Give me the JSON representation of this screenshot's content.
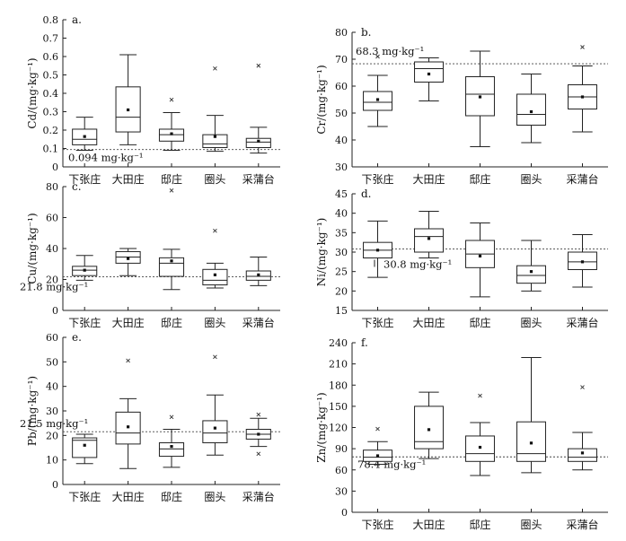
{
  "chart_data": [
    {
      "type": "box",
      "panel": "a.",
      "ylabel": "Cd/(mg·kg⁻¹)",
      "ylim": [
        0,
        0.8
      ],
      "yticks": [
        0,
        0.1,
        0.2,
        0.3,
        0.4,
        0.5,
        0.6,
        0.7,
        0.8
      ],
      "ytick_labels": [
        "0",
        "0.1",
        "0.2",
        "0.3",
        "0.4",
        "0.5",
        "0.6",
        "0.7",
        "0.8"
      ],
      "categories": [
        "下张庄",
        "大田庄",
        "邸庄",
        "圈头",
        "采蒲台"
      ],
      "boxes": [
        {
          "whisker_low": 0.09,
          "q1": 0.12,
          "median": 0.15,
          "q3": 0.205,
          "whisker_high": 0.27,
          "mean": 0.165,
          "outliers": []
        },
        {
          "whisker_low": 0.12,
          "q1": 0.19,
          "median": 0.27,
          "q3": 0.435,
          "whisker_high": 0.61,
          "mean": 0.31,
          "outliers": []
        },
        {
          "whisker_low": 0.09,
          "q1": 0.14,
          "median": 0.175,
          "q3": 0.205,
          "whisker_high": 0.295,
          "mean": 0.18,
          "outliers": [
            0.365
          ]
        },
        {
          "whisker_low": 0.085,
          "q1": 0.105,
          "median": 0.125,
          "q3": 0.175,
          "whisker_high": 0.28,
          "mean": 0.165,
          "outliers": [
            0.535
          ]
        },
        {
          "whisker_low": 0.075,
          "q1": 0.105,
          "median": 0.135,
          "q3": 0.155,
          "whisker_high": 0.215,
          "mean": 0.14,
          "outliers": [
            0.55
          ]
        }
      ],
      "reference": {
        "value": 0.094,
        "label": "0.094 mg·kg⁻¹"
      }
    },
    {
      "type": "box",
      "panel": "b.",
      "ylabel": "Cr/(mg·kg⁻¹)",
      "ylim": [
        30,
        80
      ],
      "yticks": [
        30,
        40,
        50,
        60,
        70,
        80
      ],
      "ytick_labels": [
        "30",
        "40",
        "50",
        "60",
        "70",
        "80"
      ],
      "categories": [
        "下张庄",
        "大田庄",
        "邸庄",
        "圈头",
        "采蒲台"
      ],
      "boxes": [
        {
          "whisker_low": 45,
          "q1": 51,
          "median": 54,
          "q3": 58,
          "whisker_high": 64,
          "mean": 55,
          "outliers": [
            71
          ]
        },
        {
          "whisker_low": 54.5,
          "q1": 61.5,
          "median": 66.5,
          "q3": 69,
          "whisker_high": 70.5,
          "mean": 64.5,
          "outliers": []
        },
        {
          "whisker_low": 37.5,
          "q1": 49,
          "median": 57,
          "q3": 63.5,
          "whisker_high": 73,
          "mean": 56,
          "outliers": []
        },
        {
          "whisker_low": 39,
          "q1": 45.5,
          "median": 49.5,
          "q3": 57,
          "whisker_high": 64.5,
          "mean": 50.5,
          "outliers": []
        },
        {
          "whisker_low": 43,
          "q1": 51.5,
          "median": 56,
          "q3": 60.5,
          "whisker_high": 67.5,
          "mean": 56,
          "outliers": [
            74.5
          ]
        }
      ],
      "reference": {
        "value": 68.3,
        "label": "68.3 mg·kg⁻¹"
      }
    },
    {
      "type": "box",
      "panel": "c.",
      "ylabel": "Cu/(mg·kg⁻¹)",
      "ylim": [
        0,
        80
      ],
      "yticks": [
        0,
        20,
        40,
        60,
        80
      ],
      "ytick_labels": [
        "0",
        "20",
        "40",
        "60",
        "80"
      ],
      "categories": [
        "下张庄",
        "大田庄",
        "邸庄",
        "圈头",
        "采蒲台"
      ],
      "boxes": [
        {
          "whisker_low": 19.5,
          "q1": 22.5,
          "median": 26,
          "q3": 28.5,
          "whisker_high": 35.5,
          "mean": 26,
          "outliers": []
        },
        {
          "whisker_low": 22.5,
          "q1": 30.5,
          "median": 34.5,
          "q3": 38,
          "whisker_high": 40,
          "mean": 33.5,
          "outliers": []
        },
        {
          "whisker_low": 13.5,
          "q1": 22,
          "median": 30.5,
          "q3": 34,
          "whisker_high": 39.5,
          "mean": 32,
          "outliers": [
            77.5
          ]
        },
        {
          "whisker_low": 14.5,
          "q1": 16.5,
          "median": 19.5,
          "q3": 26.5,
          "whisker_high": 30.5,
          "mean": 23,
          "outliers": [
            51.5
          ]
        },
        {
          "whisker_low": 16,
          "q1": 19.5,
          "median": 22,
          "q3": 25.5,
          "whisker_high": 34.5,
          "mean": 23,
          "outliers": []
        }
      ],
      "reference": {
        "value": 21.8,
        "label": "21.8 mg·kg⁻¹"
      }
    },
    {
      "type": "box",
      "panel": "d.",
      "ylabel": "Ni/(mg·kg⁻¹)",
      "ylim": [
        15,
        45
      ],
      "yticks": [
        15,
        20,
        25,
        30,
        35,
        40,
        45
      ],
      "ytick_labels": [
        "15",
        "20",
        "25",
        "30",
        "35",
        "40",
        "45"
      ],
      "categories": [
        "下张庄",
        "大田庄",
        "邸庄",
        "圈头",
        "采蒲台"
      ],
      "boxes": [
        {
          "whisker_low": 23.5,
          "q1": 28.5,
          "median": 30.5,
          "q3": 32.5,
          "whisker_high": 38,
          "mean": 30.5,
          "outliers": []
        },
        {
          "whisker_low": 28.5,
          "q1": 30,
          "median": 34,
          "q3": 36,
          "whisker_high": 40.5,
          "mean": 33.5,
          "outliers": []
        },
        {
          "whisker_low": 18.5,
          "q1": 26,
          "median": 29.5,
          "q3": 33,
          "whisker_high": 37.5,
          "mean": 29,
          "outliers": []
        },
        {
          "whisker_low": 20,
          "q1": 22,
          "median": 24,
          "q3": 26.5,
          "whisker_high": 33,
          "mean": 25,
          "outliers": []
        },
        {
          "whisker_low": 21,
          "q1": 25.5,
          "median": 27.5,
          "q3": 30,
          "whisker_high": 34.5,
          "mean": 27.5,
          "outliers": []
        }
      ],
      "reference": {
        "value": 30.8,
        "label": "30.8 mg·kg⁻¹"
      }
    },
    {
      "type": "box",
      "panel": "e.",
      "ylabel": "Pb/(mg·kg⁻¹)",
      "ylim": [
        0,
        60
      ],
      "yticks": [
        0,
        10,
        20,
        30,
        40,
        50,
        60
      ],
      "ytick_labels": [
        "0",
        "10",
        "20",
        "30",
        "40",
        "50",
        "60"
      ],
      "categories": [
        "下张庄",
        "大田庄",
        "邸庄",
        "圈头",
        "采蒲台"
      ],
      "boxes": [
        {
          "whisker_low": 8.5,
          "q1": 11,
          "median": 18,
          "q3": 19,
          "whisker_high": 20.5,
          "mean": 16,
          "outliers": []
        },
        {
          "whisker_low": 6.5,
          "q1": 16.5,
          "median": 21,
          "q3": 29.5,
          "whisker_high": 35,
          "mean": 23.5,
          "outliers": [
            50.5
          ]
        },
        {
          "whisker_low": 7,
          "q1": 11.5,
          "median": 14.5,
          "q3": 17,
          "whisker_high": 22.5,
          "mean": 15.5,
          "outliers": [
            27.5
          ]
        },
        {
          "whisker_low": 12,
          "q1": 17,
          "median": 21,
          "q3": 26,
          "whisker_high": 36.5,
          "mean": 23,
          "outliers": [
            52
          ]
        },
        {
          "whisker_low": 15.5,
          "q1": 18.5,
          "median": 20.5,
          "q3": 22.5,
          "whisker_high": 27,
          "mean": 20.5,
          "outliers": [
            28.5,
            12.5
          ]
        }
      ],
      "reference": {
        "value": 21.5,
        "label": "21.5 mg·kg⁻¹"
      }
    },
    {
      "type": "box",
      "panel": "f.",
      "ylabel": "Zn/(mg·kg⁻¹)",
      "ylim": [
        0,
        240
      ],
      "yticks": [
        0,
        30,
        60,
        90,
        120,
        150,
        180,
        210,
        240
      ],
      "ytick_labels": [
        "0",
        "30",
        "60",
        "90",
        "120",
        "150",
        "180",
        "210",
        "240"
      ],
      "categories": [
        "下张庄",
        "大田庄",
        "邸庄",
        "圈头",
        "采蒲台"
      ],
      "boxes": [
        {
          "whisker_low": 68,
          "q1": 72,
          "median": 78,
          "q3": 88,
          "whisker_high": 100,
          "mean": 80,
          "outliers": [
            118
          ]
        },
        {
          "whisker_low": 76,
          "q1": 90,
          "median": 100,
          "q3": 150,
          "whisker_high": 170,
          "mean": 117,
          "outliers": []
        },
        {
          "whisker_low": 52,
          "q1": 72,
          "median": 83,
          "q3": 108,
          "whisker_high": 127,
          "mean": 92,
          "outliers": [
            165
          ]
        },
        {
          "whisker_low": 56,
          "q1": 72,
          "median": 83,
          "q3": 128,
          "whisker_high": 219,
          "mean": 98,
          "outliers": []
        },
        {
          "whisker_low": 60,
          "q1": 72,
          "median": 78,
          "q3": 90,
          "whisker_high": 113,
          "mean": 84,
          "outliers": [
            177
          ]
        }
      ],
      "reference": {
        "value": 78.4,
        "label": "78.4 mg·kg⁻¹"
      }
    }
  ]
}
